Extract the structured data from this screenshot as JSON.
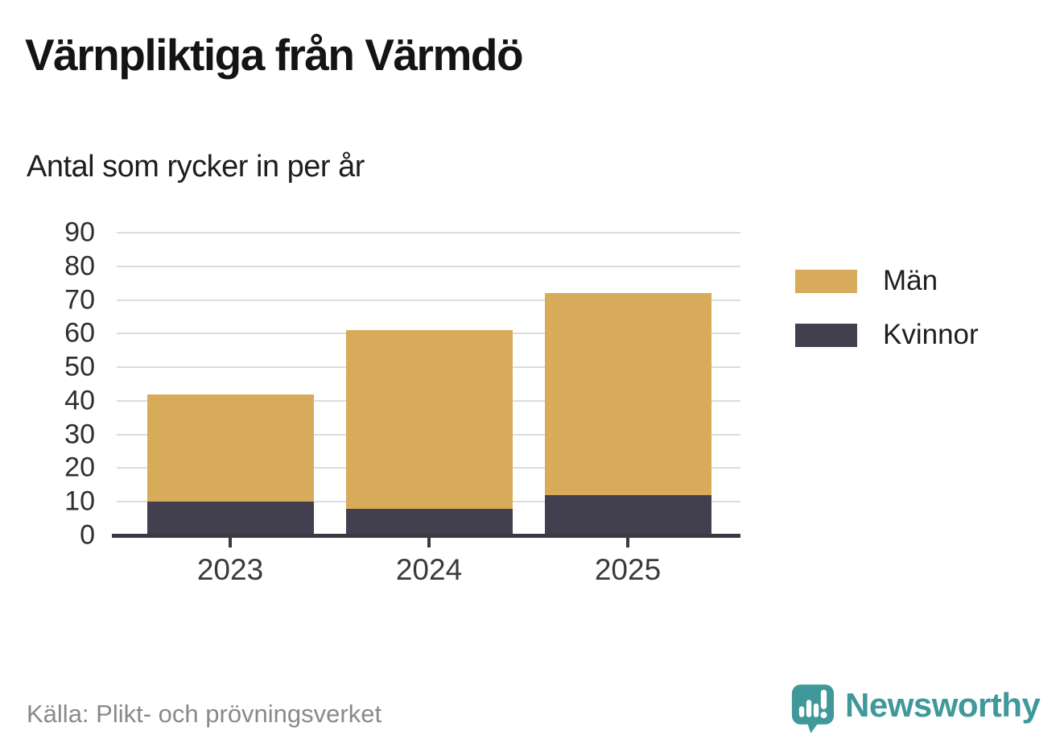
{
  "chart_data": {
    "type": "bar",
    "stacked": true,
    "title": "Värnpliktiga från Värmdö",
    "subtitle": "Antal som rycker in per år",
    "categories": [
      "2023",
      "2024",
      "2025"
    ],
    "series": [
      {
        "name": "Män",
        "color": "#d7ab5a",
        "values": [
          32,
          53,
          60
        ]
      },
      {
        "name": "Kvinnor",
        "color": "#42404f",
        "values": [
          10,
          8,
          12
        ]
      }
    ],
    "stack_totals": [
      42,
      61,
      72
    ],
    "ylim": [
      0,
      90
    ],
    "ytick_step": 10,
    "grid": true,
    "legend_position": "right"
  },
  "footer": {
    "source": "Källa: Plikt- och prövningsverket",
    "brand": "Newsworthy"
  },
  "colors": {
    "men_gold": "#d7ab5a",
    "women_dark": "#42404f",
    "gridline": "#dcdcdc",
    "axis": "#3a3a43",
    "brand_teal": "#3f989a",
    "source_gray": "#898989"
  }
}
